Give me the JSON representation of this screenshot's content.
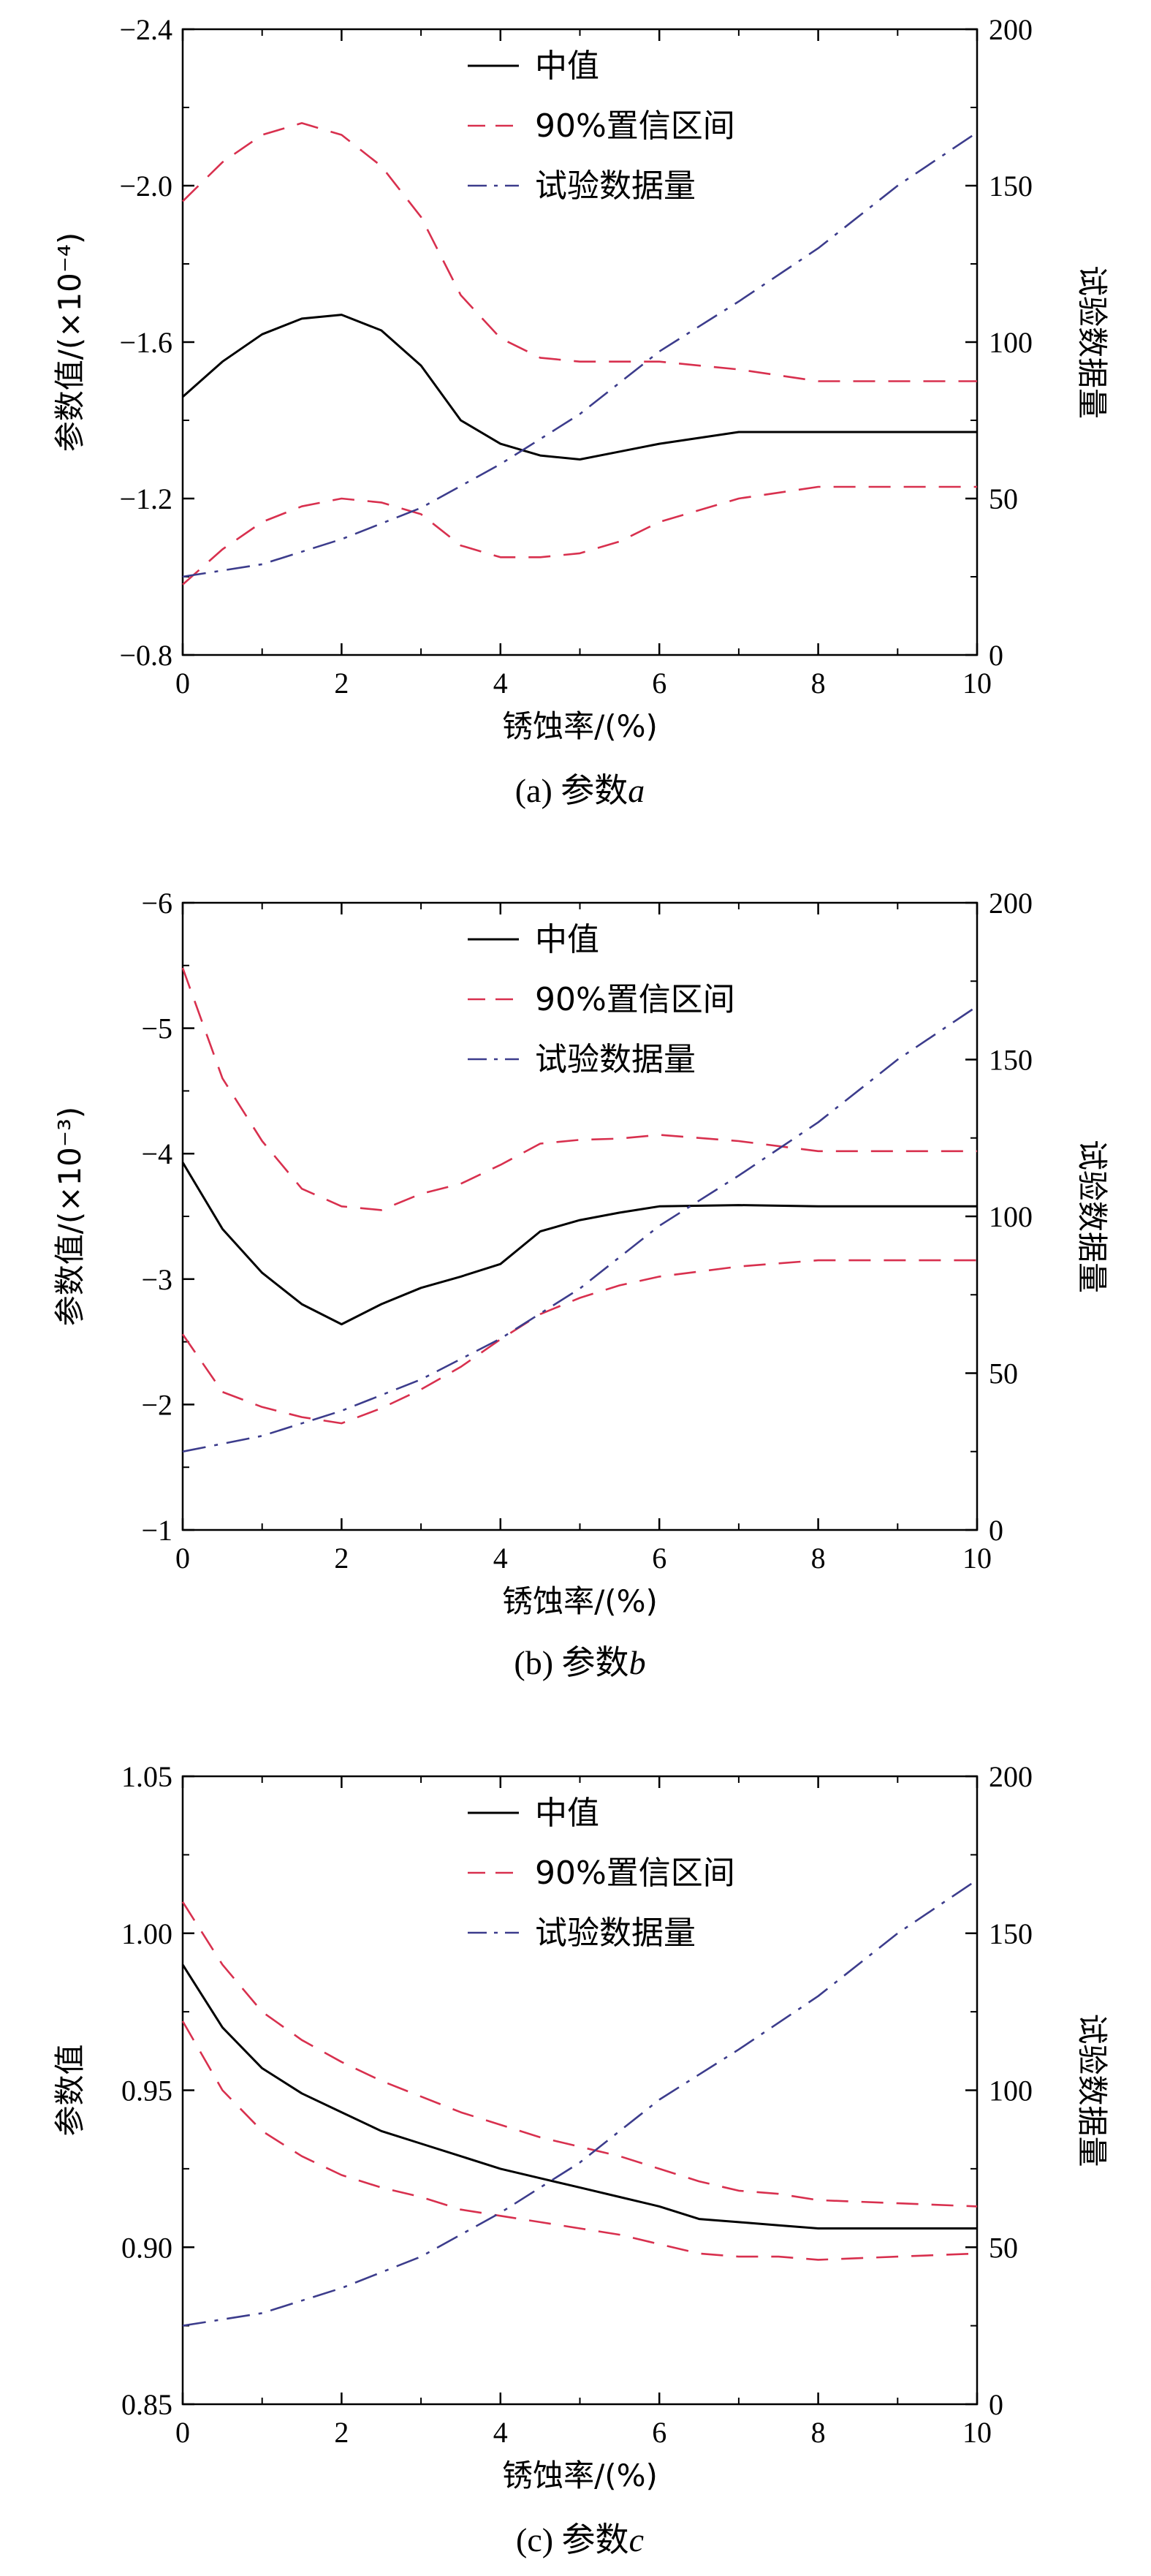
{
  "chart_data": [
    {
      "type": "line",
      "caption": "(a) 参数",
      "caption_var": "a",
      "xlabel": "锈蚀率/(%)",
      "ylabel": "参数值/(×10⁻⁴)",
      "ylabel_right": "试验数据量",
      "xlim": [
        0,
        10
      ],
      "ylim": [
        -0.8,
        -2.4
      ],
      "ylim_right": [
        0,
        200
      ],
      "x_ticks": [
        "0",
        "2",
        "4",
        "6",
        "8",
        "10"
      ],
      "y_ticks": [
        "−0.8",
        "−1.2",
        "−1.6",
        "−2.0",
        "−2.4"
      ],
      "y_ticks_right": [
        "0",
        "50",
        "100",
        "150",
        "200"
      ],
      "legend": [
        "中值",
        "90%置信区间",
        "试验数据量"
      ],
      "legend_position": "top-center",
      "colors": {
        "median": "#000000",
        "ci": "#d8304e",
        "count": "#3c3c8c"
      },
      "series": [
        {
          "name": "中值",
          "style": "solid",
          "axis": "left",
          "x": [
            0,
            0.5,
            1,
            1.5,
            2,
            2.5,
            3,
            3.5,
            4,
            4.5,
            5,
            5.5,
            6,
            7,
            8,
            9,
            10
          ],
          "y": [
            -1.46,
            -1.55,
            -1.62,
            -1.66,
            -1.67,
            -1.63,
            -1.54,
            -1.4,
            -1.34,
            -1.31,
            -1.3,
            -1.32,
            -1.34,
            -1.37,
            -1.37,
            -1.37,
            -1.37
          ]
        },
        {
          "name": "90%置信区间",
          "style": "dashed",
          "axis": "left",
          "x": [
            0,
            0.5,
            1,
            1.5,
            2,
            2.5,
            3,
            3.5,
            4,
            4.5,
            5,
            5.5,
            6,
            7,
            8,
            9,
            10
          ],
          "y": [
            -1.96,
            -2.06,
            -2.13,
            -2.16,
            -2.13,
            -2.05,
            -1.92,
            -1.72,
            -1.61,
            -1.56,
            -1.55,
            -1.55,
            -1.55,
            -1.53,
            -1.5,
            -1.5,
            -1.5
          ]
        },
        {
          "name": "90%置信区间",
          "style": "dashed",
          "axis": "left",
          "x": [
            0,
            0.5,
            1,
            1.5,
            2,
            2.5,
            3,
            3.5,
            4,
            4.5,
            5,
            5.5,
            6,
            7,
            8,
            9,
            10
          ],
          "y": [
            -0.98,
            -1.07,
            -1.14,
            -1.18,
            -1.2,
            -1.19,
            -1.16,
            -1.08,
            -1.05,
            -1.05,
            -1.06,
            -1.09,
            -1.14,
            -1.2,
            -1.23,
            -1.23,
            -1.23
          ]
        },
        {
          "name": "试验数据量",
          "style": "dashdot",
          "axis": "right",
          "x": [
            0,
            1,
            2,
            3,
            4,
            5,
            6,
            7,
            8,
            9,
            10
          ],
          "y": [
            25,
            29,
            37,
            47,
            61,
            77,
            97,
            113,
            130,
            150,
            167
          ]
        }
      ]
    },
    {
      "type": "line",
      "caption": "(b) 参数",
      "caption_var": "b",
      "xlabel": "锈蚀率/(%)",
      "ylabel": "参数值/(×10⁻³)",
      "ylabel_right": "试验数据量",
      "xlim": [
        0,
        10
      ],
      "ylim": [
        -1,
        -6
      ],
      "ylim_right": [
        0,
        200
      ],
      "x_ticks": [
        "0",
        "2",
        "4",
        "6",
        "8",
        "10"
      ],
      "y_ticks": [
        "−1",
        "−2",
        "−3",
        "−4",
        "−5",
        "−6"
      ],
      "y_ticks_right": [
        "0",
        "50",
        "100",
        "150",
        "200"
      ],
      "legend": [
        "中值",
        "90%置信区间",
        "试验数据量"
      ],
      "legend_position": "top-center",
      "colors": {
        "median": "#000000",
        "ci": "#d8304e",
        "count": "#3c3c8c"
      },
      "series": [
        {
          "name": "中值",
          "style": "solid",
          "axis": "left",
          "x": [
            0,
            0.5,
            1,
            1.5,
            2,
            2.5,
            3,
            3.5,
            4,
            4.5,
            5,
            5.5,
            6,
            7,
            8,
            9,
            10
          ],
          "y": [
            -3.93,
            -3.4,
            -3.05,
            -2.8,
            -2.64,
            -2.8,
            -2.93,
            -3.02,
            -3.12,
            -3.38,
            -3.47,
            -3.53,
            -3.58,
            -3.59,
            -3.58,
            -3.58,
            -3.58
          ]
        },
        {
          "name": "90%置信区间",
          "style": "dashed",
          "axis": "left",
          "x": [
            0,
            0.5,
            1,
            1.5,
            2,
            2.5,
            3,
            3.5,
            4,
            4.5,
            5,
            5.5,
            6,
            7,
            8,
            9,
            10
          ],
          "y": [
            -5.48,
            -4.6,
            -4.1,
            -3.72,
            -3.58,
            -3.55,
            -3.68,
            -3.76,
            -3.91,
            -4.08,
            -4.11,
            -4.12,
            -4.15,
            -4.1,
            -4.02,
            -4.02,
            -4.02
          ]
        },
        {
          "name": "90%置信区间",
          "style": "dashed",
          "axis": "left",
          "x": [
            0,
            0.5,
            1,
            1.5,
            2,
            2.5,
            3,
            3.5,
            4,
            4.5,
            5,
            5.5,
            6,
            7,
            8,
            9,
            10
          ],
          "y": [
            -2.56,
            -2.1,
            -1.98,
            -1.9,
            -1.85,
            -1.97,
            -2.12,
            -2.3,
            -2.52,
            -2.72,
            -2.85,
            -2.95,
            -3.02,
            -3.1,
            -3.15,
            -3.15,
            -3.15
          ]
        },
        {
          "name": "试验数据量",
          "style": "dashdot",
          "axis": "right",
          "x": [
            0,
            1,
            2,
            3,
            4,
            5,
            6,
            7,
            8,
            9,
            10
          ],
          "y": [
            25,
            30,
            38,
            48,
            61,
            77,
            97,
            113,
            130,
            150,
            167
          ]
        }
      ]
    },
    {
      "type": "line",
      "caption": "(c) 参数",
      "caption_var": "c",
      "xlabel": "锈蚀率/(%)",
      "ylabel": "参数值",
      "ylabel_right": "试验数据量",
      "xlim": [
        0,
        10
      ],
      "ylim": [
        0.85,
        1.05
      ],
      "ylim_right": [
        0,
        200
      ],
      "x_ticks": [
        "0",
        "2",
        "4",
        "6",
        "8",
        "10"
      ],
      "y_ticks": [
        "0.85",
        "0.90",
        "0.95",
        "1.00",
        "1.05"
      ],
      "y_ticks_right": [
        "0",
        "50",
        "100",
        "150",
        "200"
      ],
      "legend": [
        "中值",
        "90%置信区间",
        "试验数据量"
      ],
      "legend_position": "top-center",
      "colors": {
        "median": "#000000",
        "ci": "#d8304e",
        "count": "#3c3c8c"
      },
      "series": [
        {
          "name": "中值",
          "style": "solid",
          "axis": "left",
          "x": [
            0,
            0.5,
            1,
            1.5,
            2,
            2.5,
            3,
            3.5,
            4,
            4.5,
            5,
            5.5,
            6,
            6.5,
            7,
            7.5,
            8,
            9,
            10
          ],
          "y": [
            0.99,
            0.97,
            0.957,
            0.949,
            0.943,
            0.937,
            0.933,
            0.929,
            0.925,
            0.922,
            0.919,
            0.916,
            0.913,
            0.909,
            0.908,
            0.907,
            0.906,
            0.906,
            0.906
          ]
        },
        {
          "name": "90%置信区间",
          "style": "dashed",
          "axis": "left",
          "x": [
            0,
            0.5,
            1,
            1.5,
            2,
            2.5,
            3,
            3.5,
            4,
            4.5,
            5,
            5.5,
            6,
            6.5,
            7,
            7.5,
            8,
            9,
            10
          ],
          "y": [
            1.01,
            0.99,
            0.975,
            0.966,
            0.959,
            0.953,
            0.948,
            0.943,
            0.939,
            0.935,
            0.932,
            0.929,
            0.925,
            0.921,
            0.918,
            0.917,
            0.915,
            0.914,
            0.913
          ]
        },
        {
          "name": "90%置信区间",
          "style": "dashed",
          "axis": "left",
          "x": [
            0,
            0.5,
            1,
            1.5,
            2,
            2.5,
            3,
            3.5,
            4,
            4.5,
            5,
            5.5,
            6,
            6.5,
            7,
            7.5,
            8,
            9,
            10
          ],
          "y": [
            0.972,
            0.95,
            0.937,
            0.929,
            0.923,
            0.919,
            0.916,
            0.912,
            0.91,
            0.908,
            0.906,
            0.904,
            0.901,
            0.898,
            0.897,
            0.897,
            0.896,
            0.897,
            0.898
          ]
        },
        {
          "name": "试验数据量",
          "style": "dashdot",
          "axis": "right",
          "x": [
            0,
            1,
            2,
            3,
            4,
            5,
            6,
            7,
            8,
            9,
            10
          ],
          "y": [
            25,
            29,
            37,
            47,
            61,
            77,
            97,
            113,
            130,
            150,
            167
          ]
        }
      ]
    }
  ]
}
